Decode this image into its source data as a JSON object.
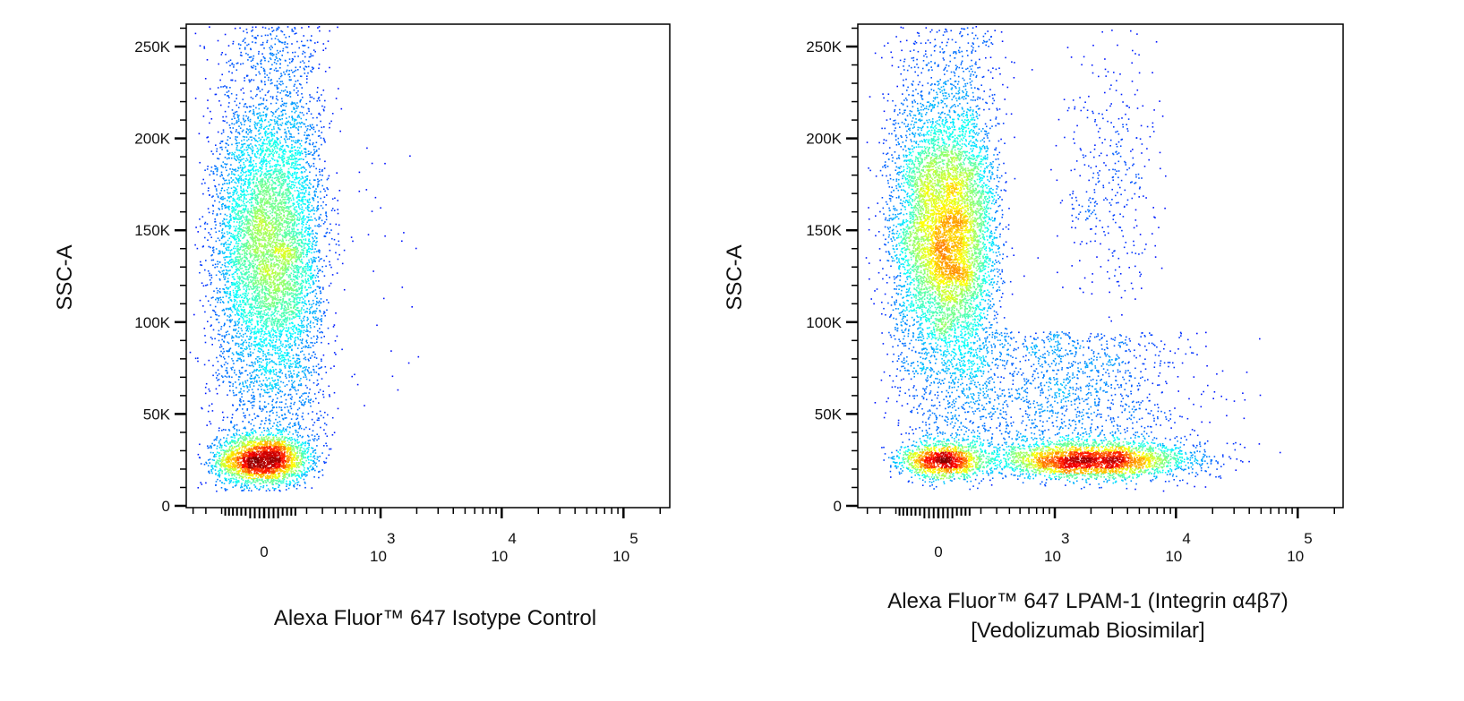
{
  "colors": {
    "low": "#0000ff",
    "mid": "#00ff80",
    "high": "#ff0000",
    "axis": "#000000"
  },
  "chart_data": [
    {
      "type": "scatter",
      "subtype": "density dot plot",
      "colormap": "jet",
      "xlabel_lines": [
        "Alexa Fluor™ 647 Isotype Control"
      ],
      "ylabel": "SSC-A",
      "x_scale": "biexponential",
      "y_scale": "linear",
      "xlim": [
        -460,
        240000
      ],
      "ylim": [
        0,
        263000
      ],
      "yticks": [
        {
          "value": 0,
          "label": "0"
        },
        {
          "value": 50000,
          "label": "50K"
        },
        {
          "value": 100000,
          "label": "100K"
        },
        {
          "value": 150000,
          "label": "150K"
        },
        {
          "value": 200000,
          "label": "200K"
        },
        {
          "value": 250000,
          "label": "250K"
        }
      ],
      "xticks": [
        {
          "value": 0,
          "label": "0"
        },
        {
          "value": 1000,
          "base": "10",
          "exp": "3"
        },
        {
          "value": 10000,
          "base": "10",
          "exp": "4"
        },
        {
          "value": 100000,
          "base": "10",
          "exp": "5"
        }
      ],
      "populations": [
        {
          "x_mean": -10,
          "x_sd": 110,
          "y_mean": 25000,
          "y_sd": 7000,
          "count": 2600
        },
        {
          "x_mean": 20,
          "x_sd": 125,
          "y_mean": 140000,
          "y_sd": 38000,
          "count": 5200
        },
        {
          "x_mean": 40,
          "x_sd": 140,
          "y_min": 30000,
          "y_max": 262000,
          "count": 2200
        },
        {
          "x_log10_mean": 2.9,
          "x_log10_sd": 0.25,
          "y_min": 50000,
          "y_max": 200000,
          "count": 40
        }
      ]
    },
    {
      "type": "scatter",
      "subtype": "density dot plot",
      "colormap": "jet",
      "xlabel_lines": [
        "Alexa Fluor™ 647 LPAM-1 (Integrin α4β7)",
        "[Vedolizumab Biosimilar]"
      ],
      "ylabel": "SSC-A",
      "x_scale": "biexponential",
      "y_scale": "linear",
      "xlim": [
        -460,
        240000
      ],
      "ylim": [
        0,
        263000
      ],
      "yticks": [
        {
          "value": 0,
          "label": "0"
        },
        {
          "value": 50000,
          "label": "50K"
        },
        {
          "value": 100000,
          "label": "100K"
        },
        {
          "value": 150000,
          "label": "150K"
        },
        {
          "value": 200000,
          "label": "200K"
        },
        {
          "value": 250000,
          "label": "250K"
        }
      ],
      "xticks": [
        {
          "value": 0,
          "label": "0"
        },
        {
          "value": 1000,
          "base": "10",
          "exp": "3"
        },
        {
          "value": 10000,
          "base": "10",
          "exp": "4"
        },
        {
          "value": 100000,
          "base": "10",
          "exp": "5"
        }
      ],
      "populations": [
        {
          "x_mean": 20,
          "x_sd": 100,
          "y_mean": 25000,
          "y_sd": 5000,
          "count": 1400
        },
        {
          "x_mean": 30,
          "x_sd": 120,
          "y_mean": 148000,
          "y_sd": 36000,
          "count": 6200
        },
        {
          "x_mean": 40,
          "x_sd": 140,
          "y_min": 30000,
          "y_max": 262000,
          "count": 1500
        },
        {
          "x_log10_mean": 3.3,
          "x_log10_sd": 0.42,
          "y_mean": 25000,
          "y_sd": 5000,
          "count": 3000
        },
        {
          "x_log10_mean": 3.1,
          "x_log10_sd": 0.5,
          "y_min": 32000,
          "y_max": 95000,
          "count": 1400
        },
        {
          "x_log10_mean": 3.45,
          "x_log10_sd": 0.22,
          "y_mean": 180000,
          "y_sd": 38000,
          "count": 380
        }
      ]
    }
  ]
}
